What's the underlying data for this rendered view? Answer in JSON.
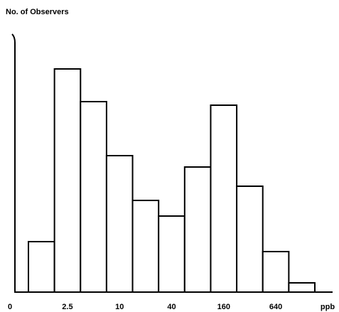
{
  "chart_data": {
    "type": "bar",
    "ylabel": "No. of Observers",
    "xlabel": "ppb",
    "x_origin_label": "0",
    "categories": [
      null,
      "2.5",
      null,
      "10",
      null,
      "40",
      null,
      "160",
      null,
      "640",
      null
    ],
    "values": [
      71,
      314,
      268,
      192,
      129,
      107,
      176,
      263,
      149,
      57,
      13
    ],
    "color": "#ffffff",
    "ylim": [
      0,
      366
    ]
  }
}
